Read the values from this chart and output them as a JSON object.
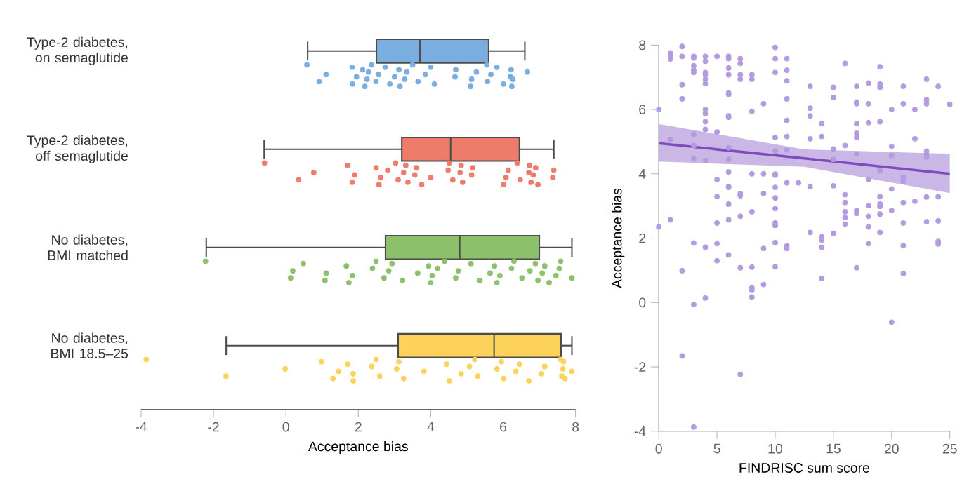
{
  "chart_data": [
    {
      "type": "box",
      "orientation": "horizontal",
      "categories": [
        "Type-2 diabetes, on semaglutide",
        "Type-2 diabetes, off semaglutide",
        "No diabetes, BMI matched",
        "No diabetes, BMI 18.5–25"
      ],
      "colors": [
        "#7aaee0",
        "#ef7b6b",
        "#8cc06a",
        "#fdd25a"
      ],
      "boxes": [
        {
          "low": 0.6,
          "q1": 2.5,
          "median": 3.7,
          "q3": 5.6,
          "high": 6.6
        },
        {
          "low": -0.6,
          "q1": 3.2,
          "median": 4.55,
          "q3": 6.45,
          "high": 7.4
        },
        {
          "low": -2.2,
          "q1": 2.75,
          "median": 4.8,
          "q3": 7.0,
          "high": 7.9
        },
        {
          "low": -1.65,
          "q1": 3.1,
          "median": 5.75,
          "q3": 7.6,
          "high": 7.9
        }
      ],
      "series": [
        {
          "type": "scatter",
          "color": "#7aaee0",
          "x": [
            "Type-2 diabetes, on semaglutide",
            "Type-2 diabetes, on semaglutide",
            "Type-2 diabetes, on semaglutide",
            "Type-2 diabetes, on semaglutide",
            "Type-2 diabetes, on semaglutide",
            "Type-2 diabetes, on semaglutide",
            "Type-2 diabetes, on semaglutide",
            "Type-2 diabetes, on semaglutide",
            "Type-2 diabetes, on semaglutide",
            "Type-2 diabetes, on semaglutide",
            "Type-2 diabetes, on semaglutide",
            "Type-2 diabetes, on semaglutide",
            "Type-2 diabetes, on semaglutide",
            "Type-2 diabetes, on semaglutide",
            "Type-2 diabetes, on semaglutide",
            "Type-2 diabetes, on semaglutide",
            "Type-2 diabetes, on semaglutide",
            "Type-2 diabetes, on semaglutide",
            "Type-2 diabetes, on semaglutide",
            "Type-2 diabetes, on semaglutide",
            "Type-2 diabetes, on semaglutide",
            "Type-2 diabetes, on semaglutide",
            "Type-2 diabetes, on semaglutide",
            "Type-2 diabetes, on semaglutide",
            "Type-2 diabetes, on semaglutide",
            "Type-2 diabetes, on semaglutide",
            "Type-2 diabetes, on semaglutide",
            "Type-2 diabetes, on semaglutide",
            "Type-2 diabetes, on semaglutide",
            "Type-2 diabetes, on semaglutide",
            "Type-2 diabetes, on semaglutide",
            "Type-2 diabetes, on semaglutide",
            "Type-2 diabetes, on semaglutide",
            "Type-2 diabetes, on semaglutide",
            "Type-2 diabetes, on semaglutide",
            "Type-2 diabetes, on semaglutide",
            "Type-2 diabetes, on semaglutide",
            "Type-2 diabetes, on semaglutide",
            "Type-2 diabetes, on semaglutide",
            "Type-2 diabetes, on semaglutide"
          ],
          "values": [
            0.58,
            0.92,
            1.11,
            1.83,
            1.84,
            1.95,
            2.12,
            2.18,
            2.24,
            2.28,
            2.37,
            2.49,
            2.56,
            2.74,
            2.87,
            3.0,
            3.12,
            3.15,
            3.28,
            3.34,
            3.5,
            3.65,
            3.85,
            4.0,
            4.1,
            4.67,
            4.69,
            5.1,
            5.13,
            5.26,
            5.55,
            5.57,
            5.66,
            5.83,
            6.01,
            6.2,
            6.22,
            6.24,
            6.27,
            6.67
          ]
        },
        {
          "type": "scatter",
          "color": "#ef7b6b",
          "x": [
            "Type-2 diabetes, off semaglutide",
            "Type-2 diabetes, off semaglutide",
            "Type-2 diabetes, off semaglutide",
            "Type-2 diabetes, off semaglutide",
            "Type-2 diabetes, off semaglutide",
            "Type-2 diabetes, off semaglutide",
            "Type-2 diabetes, off semaglutide",
            "Type-2 diabetes, off semaglutide",
            "Type-2 diabetes, off semaglutide",
            "Type-2 diabetes, off semaglutide",
            "Type-2 diabetes, off semaglutide",
            "Type-2 diabetes, off semaglutide",
            "Type-2 diabetes, off semaglutide",
            "Type-2 diabetes, off semaglutide",
            "Type-2 diabetes, off semaglutide",
            "Type-2 diabetes, off semaglutide",
            "Type-2 diabetes, off semaglutide",
            "Type-2 diabetes, off semaglutide",
            "Type-2 diabetes, off semaglutide",
            "Type-2 diabetes, off semaglutide",
            "Type-2 diabetes, off semaglutide",
            "Type-2 diabetes, off semaglutide",
            "Type-2 diabetes, off semaglutide",
            "Type-2 diabetes, off semaglutide",
            "Type-2 diabetes, off semaglutide",
            "Type-2 diabetes, off semaglutide",
            "Type-2 diabetes, off semaglutide",
            "Type-2 diabetes, off semaglutide",
            "Type-2 diabetes, off semaglutide",
            "Type-2 diabetes, off semaglutide",
            "Type-2 diabetes, off semaglutide",
            "Type-2 diabetes, off semaglutide",
            "Type-2 diabetes, off semaglutide",
            "Type-2 diabetes, off semaglutide",
            "Type-2 diabetes, off semaglutide",
            "Type-2 diabetes, off semaglutide",
            "Type-2 diabetes, off semaglutide",
            "Type-2 diabetes, off semaglutide",
            "Type-2 diabetes, off semaglutide",
            "Type-2 diabetes, off semaglutide"
          ],
          "values": [
            -0.59,
            0.35,
            0.77,
            1.7,
            1.83,
            1.9,
            2.49,
            2.57,
            2.62,
            2.81,
            3.03,
            3.1,
            3.25,
            3.31,
            3.37,
            3.56,
            3.6,
            3.75,
            4.0,
            4.48,
            4.51,
            4.61,
            4.81,
            4.84,
            4.88,
            5.13,
            5.16,
            6.01,
            6.08,
            6.14,
            6.39,
            6.47,
            6.71,
            6.73,
            6.77,
            6.83,
            6.9,
            6.96,
            7.37,
            7.4
          ]
        },
        {
          "type": "scatter",
          "color": "#8cc06a",
          "x": [
            "No diabetes, BMI matched",
            "No diabetes, BMI matched",
            "No diabetes, BMI matched",
            "No diabetes, BMI matched",
            "No diabetes, BMI matched",
            "No diabetes, BMI matched",
            "No diabetes, BMI matched",
            "No diabetes, BMI matched",
            "No diabetes, BMI matched",
            "No diabetes, BMI matched",
            "No diabetes, BMI matched",
            "No diabetes, BMI matched",
            "No diabetes, BMI matched",
            "No diabetes, BMI matched",
            "No diabetes, BMI matched",
            "No diabetes, BMI matched",
            "No diabetes, BMI matched",
            "No diabetes, BMI matched",
            "No diabetes, BMI matched",
            "No diabetes, BMI matched",
            "No diabetes, BMI matched",
            "No diabetes, BMI matched",
            "No diabetes, BMI matched",
            "No diabetes, BMI matched",
            "No diabetes, BMI matched",
            "No diabetes, BMI matched",
            "No diabetes, BMI matched",
            "No diabetes, BMI matched",
            "No diabetes, BMI matched",
            "No diabetes, BMI matched",
            "No diabetes, BMI matched",
            "No diabetes, BMI matched",
            "No diabetes, BMI matched",
            "No diabetes, BMI matched",
            "No diabetes, BMI matched",
            "No diabetes, BMI matched",
            "No diabetes, BMI matched",
            "No diabetes, BMI matched",
            "No diabetes, BMI matched",
            "No diabetes, BMI matched",
            "No diabetes, BMI matched",
            "No diabetes, BMI matched"
          ],
          "values": [
            -2.22,
            0.13,
            0.19,
            0.48,
            1.08,
            1.11,
            1.67,
            1.74,
            1.84,
            2.39,
            2.49,
            2.71,
            2.84,
            2.93,
            3.22,
            3.64,
            3.94,
            4.0,
            4.04,
            4.19,
            4.38,
            4.69,
            4.76,
            5.11,
            5.36,
            5.64,
            5.76,
            5.83,
            5.91,
            6.23,
            6.3,
            6.52,
            6.74,
            6.89,
            6.96,
            7.08,
            7.15,
            7.27,
            7.46,
            7.55,
            7.59,
            7.9
          ]
        },
        {
          "type": "scatter",
          "color": "#fdd25a",
          "x": [
            "No diabetes, BMI 18.5–25",
            "No diabetes, BMI 18.5–25",
            "No diabetes, BMI 18.5–25",
            "No diabetes, BMI 18.5–25",
            "No diabetes, BMI 18.5–25",
            "No diabetes, BMI 18.5–25",
            "No diabetes, BMI 18.5–25",
            "No diabetes, BMI 18.5–25",
            "No diabetes, BMI 18.5–25",
            "No diabetes, BMI 18.5–25",
            "No diabetes, BMI 18.5–25",
            "No diabetes, BMI 18.5–25",
            "No diabetes, BMI 18.5–25",
            "No diabetes, BMI 18.5–25",
            "No diabetes, BMI 18.5–25",
            "No diabetes, BMI 18.5–25",
            "No diabetes, BMI 18.5–25",
            "No diabetes, BMI 18.5–25",
            "No diabetes, BMI 18.5–25",
            "No diabetes, BMI 18.5–25",
            "No diabetes, BMI 18.5–25",
            "No diabetes, BMI 18.5–25",
            "No diabetes, BMI 18.5–25",
            "No diabetes, BMI 18.5–25",
            "No diabetes, BMI 18.5–25",
            "No diabetes, BMI 18.5–25",
            "No diabetes, BMI 18.5–25",
            "No diabetes, BMI 18.5–25",
            "No diabetes, BMI 18.5–25",
            "No diabetes, BMI 18.5–25",
            "No diabetes, BMI 18.5–25",
            "No diabetes, BMI 18.5–25",
            "No diabetes, BMI 18.5–25",
            "No diabetes, BMI 18.5–25",
            "No diabetes, BMI 18.5–25",
            "No diabetes, BMI 18.5–25"
          ],
          "values": [
            -3.86,
            -1.66,
            -0.02,
            0.98,
            1.3,
            1.45,
            1.71,
            1.86,
            1.86,
            2.37,
            2.49,
            2.59,
            3.06,
            3.12,
            3.25,
            3.81,
            4.44,
            4.51,
            4.84,
            5.07,
            5.22,
            5.3,
            5.83,
            5.95,
            6.01,
            6.35,
            6.45,
            6.71,
            7.06,
            7.15,
            7.59,
            7.62,
            7.65,
            7.67,
            7.71,
            7.9
          ]
        }
      ],
      "xlim": [
        -4,
        8
      ],
      "xticks": [
        -4,
        -2,
        0,
        2,
        4,
        6,
        8
      ],
      "xlabel": "Acceptance bias"
    },
    {
      "type": "scatter",
      "xlim": [
        0,
        25
      ],
      "ylim": [
        -4,
        8
      ],
      "xticks": [
        0,
        5,
        10,
        15,
        20,
        25
      ],
      "yticks": [
        -4,
        -2,
        0,
        2,
        4,
        6,
        8
      ],
      "xlabel": "FINDRISC sum score",
      "ylabel": "Acceptance bias",
      "series": [
        {
          "type": "scatter",
          "color": "#b49ae0",
          "x": [
            0,
            0,
            1,
            1,
            1,
            1,
            1,
            2,
            2,
            2,
            2,
            2,
            2,
            3,
            3,
            3,
            3,
            3,
            3,
            3,
            3,
            3,
            3,
            3,
            4,
            4,
            4,
            4,
            4,
            4,
            4,
            4,
            4,
            4,
            4,
            4,
            4,
            5,
            5,
            5,
            5,
            5,
            5,
            5,
            6,
            6,
            6,
            6,
            6,
            6,
            6,
            6,
            6,
            6,
            6,
            6,
            6,
            6,
            6,
            6,
            7,
            7,
            7,
            7,
            7,
            7,
            7,
            7,
            7,
            8,
            8,
            8,
            8,
            8,
            8,
            8,
            8,
            8,
            9,
            9,
            9,
            9,
            9,
            10,
            10,
            10,
            10,
            10,
            10,
            10,
            10,
            10,
            10,
            10,
            10,
            10,
            10,
            11,
            11,
            11,
            11,
            11,
            11,
            11,
            11,
            11,
            11,
            12,
            13,
            13,
            13,
            13,
            13,
            13,
            14,
            14,
            14,
            14,
            14,
            14,
            15,
            15,
            15,
            15,
            15,
            15,
            16,
            16,
            16,
            16,
            16,
            16,
            16,
            17,
            17,
            17,
            17,
            17,
            17,
            17,
            17,
            17,
            17,
            18,
            18,
            18,
            18,
            18,
            18,
            18,
            18,
            19,
            19,
            19,
            19,
            19,
            19,
            19,
            19,
            19,
            19,
            20,
            20,
            20,
            20,
            20,
            20,
            21,
            21,
            21,
            21,
            21,
            21,
            21,
            21,
            22,
            22,
            22,
            23,
            23,
            23,
            23,
            23,
            23,
            23,
            23,
            24,
            24,
            24,
            24,
            24,
            25
          ],
          "values": [
            6.0,
            2.35,
            7.76,
            7.65,
            7.57,
            5.06,
            2.57,
            7.96,
            7.65,
            6.77,
            6.33,
            0.99,
            -1.66,
            7.65,
            7.6,
            7.36,
            7.22,
            7.15,
            5.23,
            4.88,
            4.48,
            1.85,
            -0.06,
            -3.87,
            7.65,
            7.5,
            7.15,
            7.08,
            6.94,
            6.8,
            6.0,
            5.87,
            5.62,
            5.38,
            4.41,
            1.72,
            0.14,
            7.65,
            5.3,
            3.82,
            3.29,
            2.47,
            1.83,
            1.3,
            7.65,
            7.58,
            7.29,
            7.08,
            6.51,
            6.47,
            5.8,
            5.76,
            4.81,
            4.45,
            4.06,
            3.6,
            3.58,
            3.06,
            2.57,
            1.48,
            7.58,
            7.43,
            7.08,
            6.94,
            3.39,
            3.32,
            2.68,
            1.08,
            -2.23,
            7.08,
            6.94,
            5.94,
            4.0,
            2.82,
            1.1,
            0.46,
            0.38,
            0.17,
            6.18,
            4.0,
            3.39,
            1.68,
            0.56,
            7.93,
            7.58,
            7.15,
            5.13,
            4.71,
            3.99,
            3.96,
            3.58,
            3.25,
            2.92,
            2.47,
            2.4,
            1.86,
            1.11,
            7.58,
            7.22,
            6.89,
            6.33,
            5.66,
            5.16,
            4.74,
            3.72,
            1.76,
            1.68,
            3.72,
            6.72,
            6.04,
            5.8,
            5.09,
            3.6,
            2.18,
            5.56,
            5.16,
            2.04,
            1.94,
            1.72,
            0.75,
            6.69,
            6.37,
            4.77,
            4.45,
            3.63,
            2.15,
            7.43,
            4.88,
            3.35,
            3.11,
            2.82,
            2.64,
            2.44,
            6.72,
            6.23,
            6.18,
            5.56,
            5.26,
            5.13,
            4.62,
            2.86,
            2.77,
            1.08,
            6.82,
            6.18,
            5.59,
            3.82,
            3.01,
            2.68,
            2.35,
            1.83,
            7.33,
            6.79,
            6.69,
            5.62,
            4.1,
            3.29,
            3.06,
            2.99,
            2.75,
            2.18,
            6.0,
            4.85,
            4.57,
            3.53,
            2.86,
            -0.61,
            6.72,
            6.18,
            3.89,
            3.77,
            3.11,
            2.47,
            1.77,
            0.9,
            6.0,
            5.09,
            3.15,
            6.94,
            6.3,
            6.18,
            4.7,
            4.6,
            4.52,
            3.28,
            2.51,
            6.72,
            3.29,
            2.54,
            1.9,
            1.82,
            6.16
          ]
        },
        {
          "type": "line",
          "color": "#7e4cc0",
          "x": [
            0,
            12.5,
            25
          ],
          "values": [
            4.95,
            4.48,
            4.0
          ],
          "lower": [
            4.38,
            4.22,
            3.4
          ],
          "upper": [
            5.55,
            4.76,
            4.62
          ]
        }
      ]
    }
  ]
}
